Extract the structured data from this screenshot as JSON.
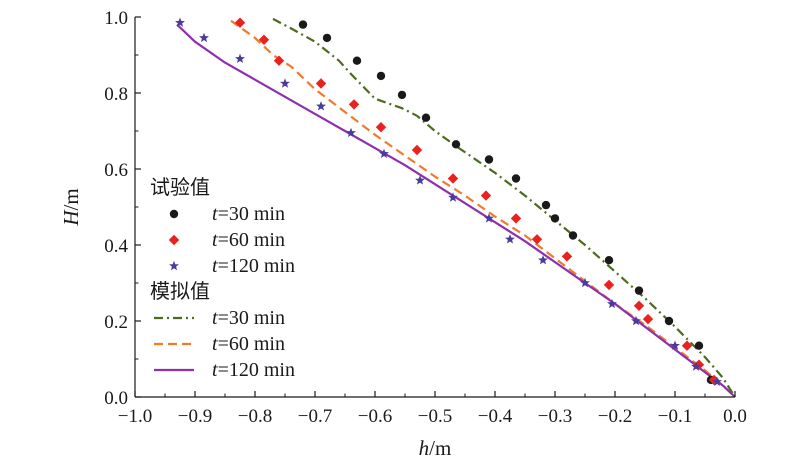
{
  "chart_data": {
    "type": "scatter",
    "xlabel": {
      "var": "h",
      "unit": "/m"
    },
    "ylabel": {
      "var": "H",
      "unit": "/m"
    },
    "xlim": [
      -1.0,
      0.0
    ],
    "ylim": [
      0.0,
      1.0
    ],
    "xticks": [
      -1.0,
      -0.9,
      -0.8,
      -0.7,
      -0.6,
      -0.5,
      -0.4,
      -0.3,
      -0.2,
      -0.1,
      0.0
    ],
    "xtick_labels": [
      "−1.0",
      "−0.9",
      "−0.8",
      "−0.7",
      "−0.6",
      "−0.5",
      "−0.4",
      "−0.3",
      "−0.2",
      "−0.1",
      "0.0"
    ],
    "yticks": [
      0.0,
      0.2,
      0.4,
      0.6,
      0.8,
      1.0
    ],
    "ytick_labels": [
      "0.0",
      "0.2",
      "0.4",
      "0.6",
      "0.8",
      "1.0"
    ],
    "grid": false,
    "legend": {
      "placement": "left-center",
      "groups": [
        {
          "title": "试验值",
          "entries": [
            {
              "var": "t",
              "rest": "=30 min",
              "ref": "exp_30"
            },
            {
              "var": "t",
              "rest": "=60 min",
              "ref": "exp_60"
            },
            {
              "var": "t",
              "rest": "=120 min",
              "ref": "exp_120"
            }
          ]
        },
        {
          "title": "模拟值",
          "entries": [
            {
              "var": "t",
              "rest": "=30 min",
              "ref": "sim_30"
            },
            {
              "var": "t",
              "rest": "=60 min",
              "ref": "sim_60"
            },
            {
              "var": "t",
              "rest": "=120 min",
              "ref": "sim_120"
            }
          ]
        }
      ]
    },
    "series": [
      {
        "id": "exp_30",
        "kind": "scatter",
        "marker": "circle",
        "color": "#1a1a1a",
        "x": [
          -0.72,
          -0.68,
          -0.63,
          -0.59,
          -0.555,
          -0.515,
          -0.465,
          -0.41,
          -0.365,
          -0.315,
          -0.3,
          -0.27,
          -0.21,
          -0.16,
          -0.11,
          -0.06,
          -0.04
        ],
        "y": [
          0.98,
          0.945,
          0.885,
          0.845,
          0.795,
          0.735,
          0.665,
          0.625,
          0.575,
          0.505,
          0.47,
          0.425,
          0.36,
          0.28,
          0.2,
          0.135,
          0.045
        ]
      },
      {
        "id": "exp_60",
        "kind": "scatter",
        "marker": "diamond",
        "color": "#e8231f",
        "x": [
          -0.825,
          -0.785,
          -0.76,
          -0.69,
          -0.635,
          -0.59,
          -0.53,
          -0.47,
          -0.415,
          -0.365,
          -0.33,
          -0.28,
          -0.21,
          -0.16,
          -0.145,
          -0.08,
          -0.06,
          -0.035
        ],
        "y": [
          0.985,
          0.94,
          0.885,
          0.825,
          0.77,
          0.71,
          0.65,
          0.575,
          0.53,
          0.47,
          0.415,
          0.37,
          0.295,
          0.24,
          0.205,
          0.135,
          0.085,
          0.045
        ]
      },
      {
        "id": "exp_120",
        "kind": "scatter",
        "marker": "star",
        "color": "#4a3c9a",
        "x": [
          -0.925,
          -0.885,
          -0.825,
          -0.75,
          -0.69,
          -0.64,
          -0.585,
          -0.525,
          -0.47,
          -0.41,
          -0.375,
          -0.32,
          -0.25,
          -0.205,
          -0.165,
          -0.1,
          -0.065,
          -0.03
        ],
        "y": [
          0.985,
          0.945,
          0.89,
          0.825,
          0.765,
          0.695,
          0.64,
          0.57,
          0.525,
          0.47,
          0.415,
          0.36,
          0.3,
          0.245,
          0.2,
          0.135,
          0.08,
          0.04
        ]
      },
      {
        "id": "sim_30",
        "kind": "line",
        "style": "dashdot",
        "color": "#4d6b1f",
        "x": [
          -0.77,
          -0.74,
          -0.7,
          -0.66,
          -0.64,
          -0.6,
          -0.555,
          -0.53,
          -0.5,
          -0.46,
          -0.4,
          -0.35,
          -0.3,
          -0.25,
          -0.2,
          -0.15,
          -0.1,
          -0.05,
          -0.02,
          0.0
        ],
        "y": [
          0.995,
          0.97,
          0.935,
          0.885,
          0.85,
          0.785,
          0.76,
          0.74,
          0.7,
          0.655,
          0.59,
          0.53,
          0.465,
          0.4,
          0.33,
          0.26,
          0.185,
          0.105,
          0.05,
          0.0
        ]
      },
      {
        "id": "sim_60",
        "kind": "line",
        "style": "dashed",
        "color": "#f07a2b",
        "x": [
          -0.84,
          -0.8,
          -0.77,
          -0.74,
          -0.7,
          -0.65,
          -0.6,
          -0.55,
          -0.5,
          -0.45,
          -0.4,
          -0.35,
          -0.3,
          -0.25,
          -0.2,
          -0.15,
          -0.1,
          -0.05,
          -0.02,
          0.0
        ],
        "y": [
          0.99,
          0.945,
          0.9,
          0.87,
          0.81,
          0.75,
          0.69,
          0.635,
          0.58,
          0.53,
          0.475,
          0.425,
          0.365,
          0.305,
          0.245,
          0.19,
          0.13,
          0.07,
          0.03,
          0.0
        ]
      },
      {
        "id": "sim_120",
        "kind": "line",
        "style": "solid",
        "color": "#8e2fae",
        "x": [
          -0.93,
          -0.9,
          -0.85,
          -0.8,
          -0.75,
          -0.7,
          -0.65,
          -0.6,
          -0.55,
          -0.5,
          -0.45,
          -0.4,
          -0.35,
          -0.3,
          -0.25,
          -0.2,
          -0.15,
          -0.1,
          -0.05,
          -0.02,
          0.0
        ],
        "y": [
          0.98,
          0.935,
          0.88,
          0.835,
          0.79,
          0.745,
          0.7,
          0.655,
          0.61,
          0.56,
          0.51,
          0.46,
          0.41,
          0.355,
          0.3,
          0.245,
          0.185,
          0.125,
          0.065,
          0.03,
          0.0
        ]
      }
    ]
  }
}
